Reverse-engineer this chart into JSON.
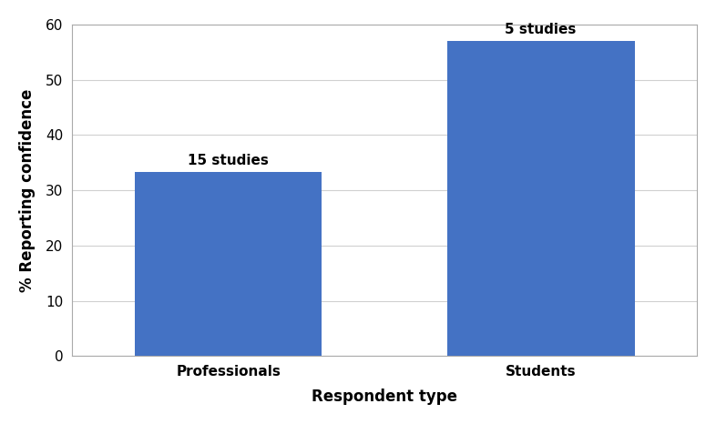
{
  "categories": [
    "Professionals",
    "Students"
  ],
  "values": [
    33.3,
    57.0
  ],
  "bar_labels": [
    "15 studies",
    "5 studies"
  ],
  "bar_color": "#4472C4",
  "ylabel": "% Reporting confidence",
  "xlabel": "Respondent type",
  "ylim": [
    0,
    60
  ],
  "yticks": [
    0,
    10,
    20,
    30,
    40,
    50,
    60
  ],
  "bar_width": 0.3,
  "x_positions": [
    0.25,
    0.75
  ],
  "xlim": [
    0,
    1
  ],
  "label_fontsize": 11,
  "axis_label_fontsize": 12,
  "tick_fontsize": 11,
  "background_color": "#ffffff",
  "grid_color": "#d0d0d0",
  "spine_color": "#aaaaaa"
}
